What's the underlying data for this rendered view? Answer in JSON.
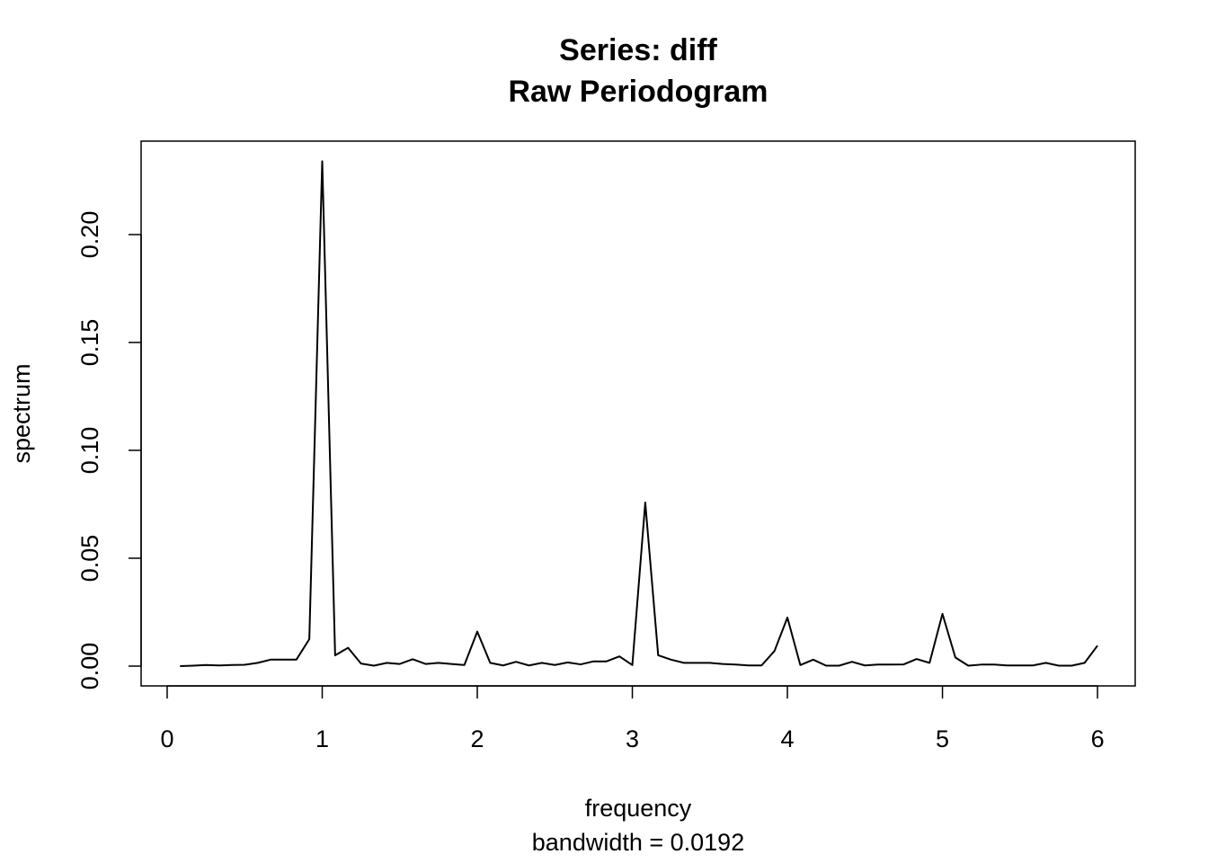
{
  "chart_data": {
    "type": "line",
    "title": "Series: diff",
    "subtitle": "Raw Periodogram",
    "xlabel": "frequency",
    "xlabel_note": "bandwidth = 0.0192",
    "ylabel": "spectrum",
    "x": [
      0.0833,
      0.1667,
      0.25,
      0.3333,
      0.4167,
      0.5,
      0.5833,
      0.6667,
      0.75,
      0.8333,
      0.9167,
      1.0,
      1.0833,
      1.1667,
      1.25,
      1.3333,
      1.4167,
      1.5,
      1.5833,
      1.6667,
      1.75,
      1.8333,
      1.9167,
      2.0,
      2.0833,
      2.1667,
      2.25,
      2.3333,
      2.4167,
      2.5,
      2.5833,
      2.6667,
      2.75,
      2.8333,
      2.9167,
      3.0,
      3.0833,
      3.1667,
      3.25,
      3.3333,
      3.4167,
      3.5,
      3.5833,
      3.6667,
      3.75,
      3.8333,
      3.9167,
      4.0,
      4.0833,
      4.1667,
      4.25,
      4.3333,
      4.4167,
      4.5,
      4.5833,
      4.6667,
      4.75,
      4.8333,
      4.9167,
      5.0,
      5.0833,
      5.1667,
      5.25,
      5.3333,
      5.4167,
      5.5,
      5.5833,
      5.6667,
      5.75,
      5.8333,
      5.9167,
      6.0
    ],
    "series": [
      {
        "name": "spectrum",
        "color": "#000000",
        "values": [
          0.0,
          0.0002,
          0.0005,
          0.0003,
          0.0005,
          0.0006,
          0.0015,
          0.003,
          0.003,
          0.003,
          0.0125,
          0.234,
          0.005,
          0.0085,
          0.0012,
          0.0002,
          0.0015,
          0.001,
          0.0032,
          0.001,
          0.0015,
          0.001,
          0.0005,
          0.016,
          0.0015,
          0.0003,
          0.002,
          0.0003,
          0.0015,
          0.0005,
          0.0017,
          0.0008,
          0.0022,
          0.0022,
          0.0045,
          0.0005,
          0.0758,
          0.005,
          0.003,
          0.0015,
          0.0015,
          0.0015,
          0.001,
          0.0007,
          0.0003,
          0.0003,
          0.007,
          0.0225,
          0.0005,
          0.003,
          0.0002,
          0.0002,
          0.002,
          0.0003,
          0.0007,
          0.0007,
          0.0008,
          0.0033,
          0.0015,
          0.0242,
          0.004,
          0.0002,
          0.0007,
          0.0007,
          0.0003,
          0.0003,
          0.0003,
          0.0015,
          0.0002,
          0.0002,
          0.0015,
          0.0095
        ]
      }
    ],
    "xlim": [
      -0.168,
      6.243
    ],
    "ylim": [
      -0.00917,
      0.2433
    ],
    "xticks": [
      0,
      1,
      2,
      3,
      4,
      5,
      6
    ],
    "yticks": [
      {
        "value": 0,
        "label": "0.00"
      },
      {
        "value": 0.05,
        "label": "0.05"
      },
      {
        "value": 0.1,
        "label": "0.10"
      },
      {
        "value": 0.15,
        "label": "0.15"
      },
      {
        "value": 0.2,
        "label": "0.20"
      }
    ],
    "grid": false
  }
}
